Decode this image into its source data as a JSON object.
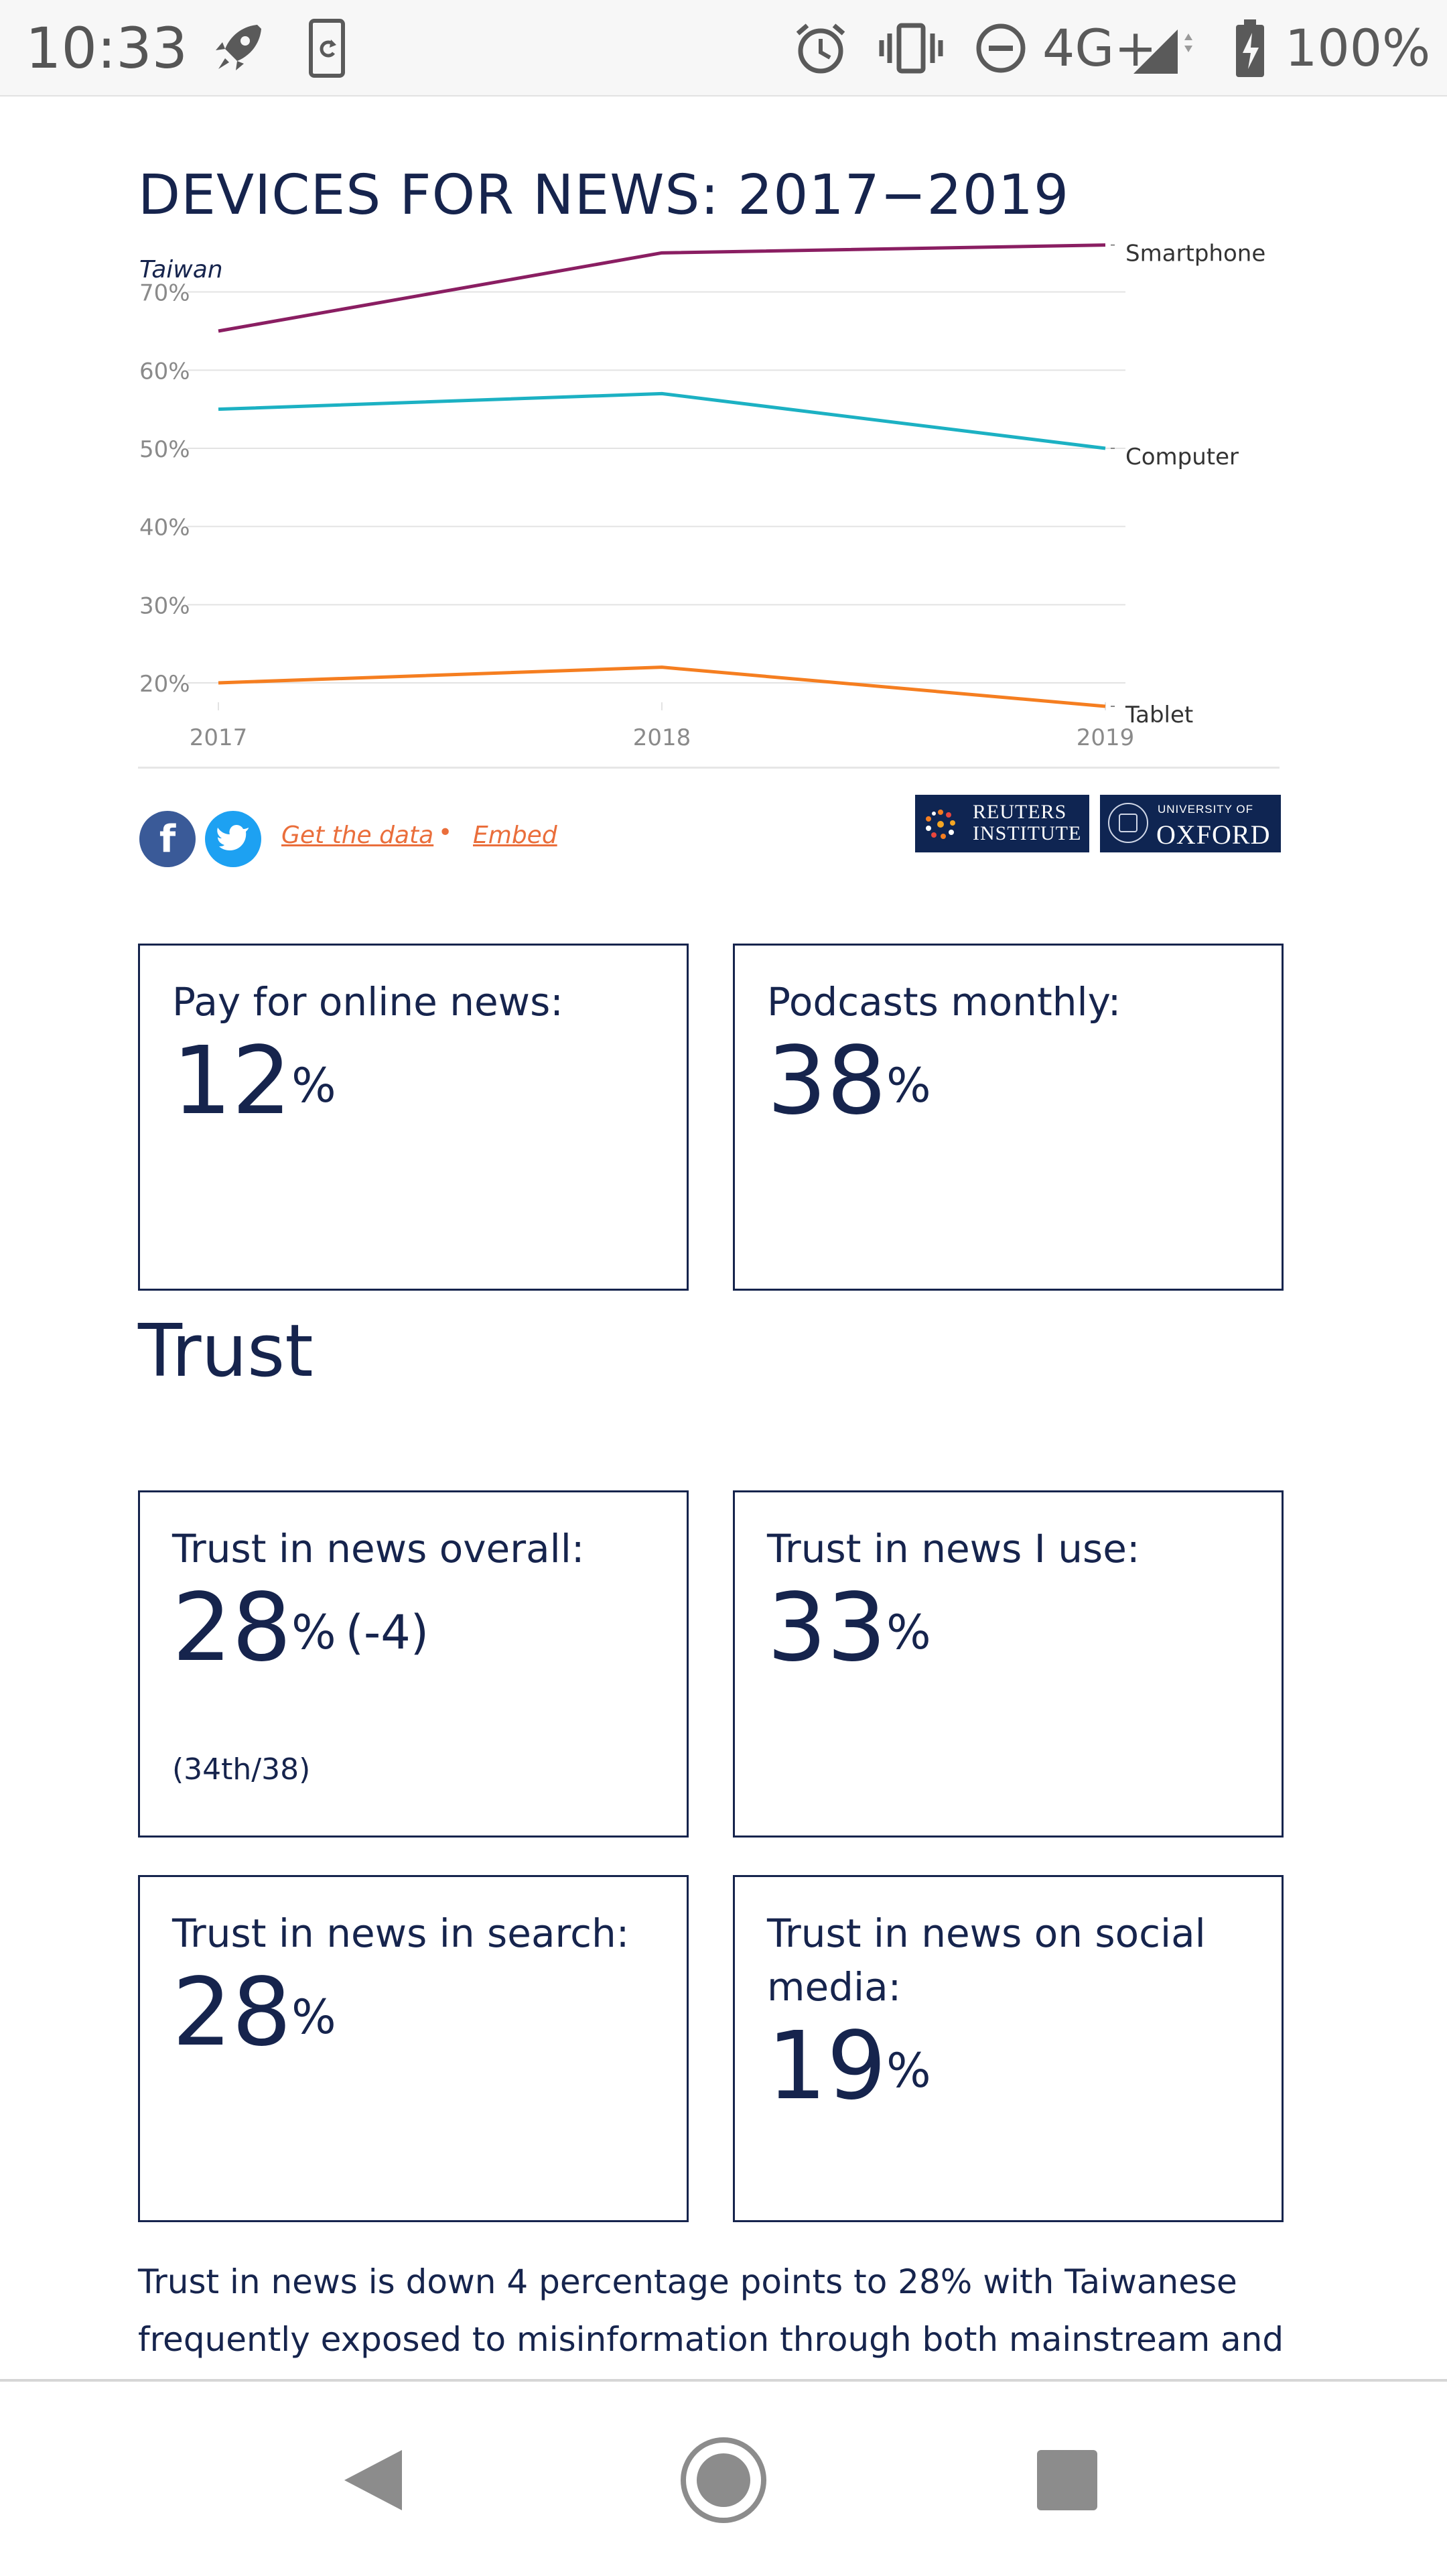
{
  "status_bar": {
    "time": "10:33",
    "network": "4G+",
    "battery": "100%",
    "icons": [
      "rocket-icon",
      "sync-icon",
      "alarm-icon",
      "vibrate-icon",
      "do-not-disturb-icon",
      "signal-icon",
      "battery-charging-icon"
    ]
  },
  "chart": {
    "title": "DEVICES FOR NEWS: 2017−2019",
    "subtitle": "Taiwan"
  },
  "chart_data": {
    "type": "line",
    "title": "DEVICES FOR NEWS: 2017−2019",
    "subtitle": "Taiwan",
    "x": [
      "2017",
      "2018",
      "2019"
    ],
    "ylim": [
      17,
      77
    ],
    "yticks": [
      20,
      30,
      40,
      50,
      60,
      70
    ],
    "ytick_labels": [
      "20%",
      "30%",
      "40%",
      "50%",
      "60%",
      "70%"
    ],
    "grid": true,
    "legend": "inline-right",
    "series": [
      {
        "name": "Smartphone",
        "values": [
          65,
          75,
          76
        ],
        "color": "#8a1e62"
      },
      {
        "name": "Computer",
        "values": [
          55,
          57,
          50
        ],
        "color": "#1cb1c3"
      },
      {
        "name": "Tablet",
        "values": [
          20,
          22,
          17
        ],
        "color": "#f57e20"
      }
    ]
  },
  "share": {
    "facebook_icon": "facebook-icon",
    "twitter_icon": "twitter-icon",
    "get_data": "Get the data",
    "separator": "•",
    "embed": "Embed"
  },
  "logos": {
    "reuters_line1": "REUTERS",
    "reuters_line2": "INSTITUTE",
    "oxford_line1": "UNIVERSITY OF",
    "oxford_line2": "OXFORD"
  },
  "cards": {
    "pay": {
      "label": "Pay for online news:",
      "value": "12",
      "unit": "%"
    },
    "podcasts": {
      "label": "Podcasts monthly:",
      "value": "38",
      "unit": "%"
    },
    "trust_overall": {
      "label": "Trust in news overall:",
      "value": "28",
      "unit": "%",
      "change": "(-4)",
      "rank": "(34th/38)"
    },
    "trust_use": {
      "label": "Trust in news I use:",
      "value": "33",
      "unit": "%"
    },
    "trust_search": {
      "label": "Trust in news in search:",
      "value": "28",
      "unit": "%"
    },
    "trust_social": {
      "label": "Trust in news on social media:",
      "value": "19",
      "unit": "%"
    }
  },
  "section": {
    "heading": "Trust"
  },
  "body_text": "Trust in news is down 4 percentage points to 28% with Taiwanese frequently exposed to misinformation through both mainstream and",
  "nav": {
    "icons": [
      "back-icon",
      "home-icon",
      "recents-icon"
    ]
  }
}
